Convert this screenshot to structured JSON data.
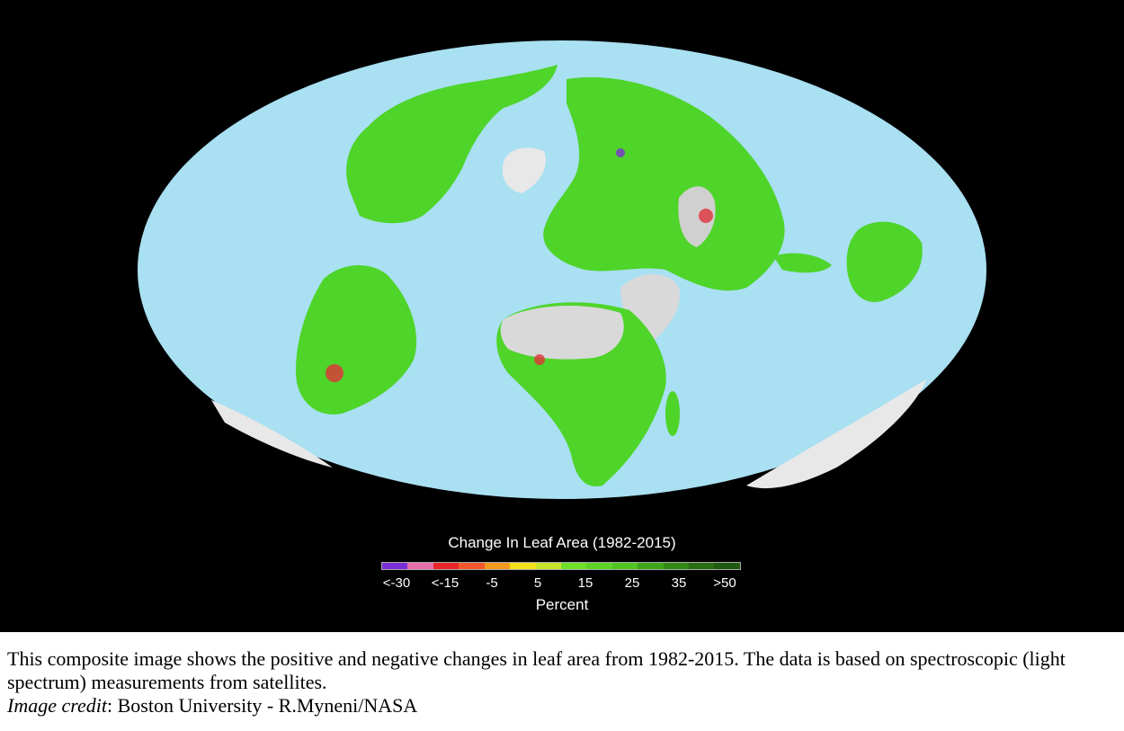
{
  "legend": {
    "title": "Change In Leaf Area (1982-2015)",
    "unit": "Percent",
    "ticks": [
      "<-30",
      "<-15",
      "-5",
      "5",
      "15",
      "25",
      "35",
      ">50"
    ],
    "colors": [
      "#7b2fd6",
      "#e86fa8",
      "#e8262a",
      "#f2582c",
      "#f39a1e",
      "#f1e01a",
      "#c8e629",
      "#6ee02a",
      "#5bd425",
      "#4fc61f",
      "#3ea61a",
      "#2f8a16",
      "#2a6e14",
      "#1f5a10"
    ]
  },
  "map_colors": {
    "ocean": "#a9e0f2",
    "background": "#000000",
    "vegetation": "#4fd42a",
    "desert": "#d9d9d9",
    "ice": "#e8e8e8",
    "decline": "#e0313a"
  },
  "caption": {
    "text": "This composite image shows the positive and negative changes in leaf area from 1982-2015. The data is based on spectroscopic (light spectrum) measurements from  satellites.",
    "credit_label": "Image credit",
    "credit_value": ": Boston University - R.Myneni/NASA"
  }
}
